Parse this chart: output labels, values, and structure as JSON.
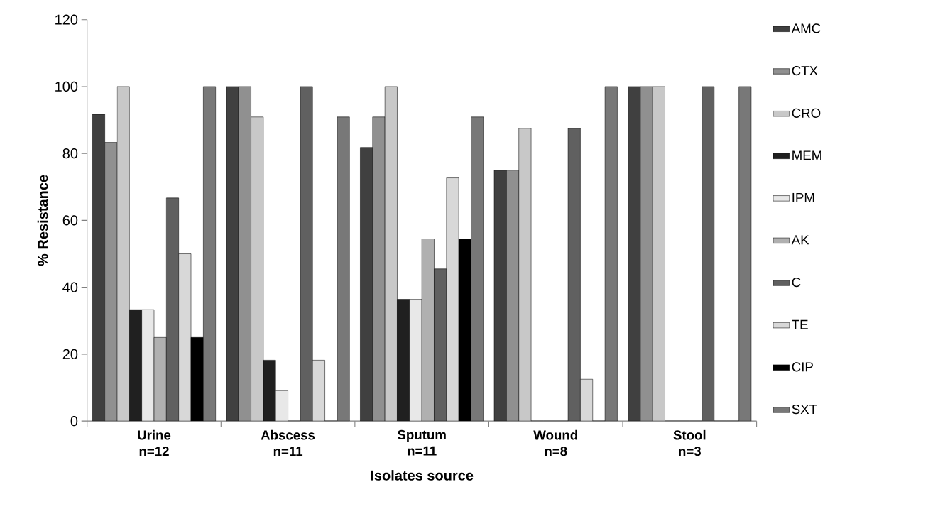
{
  "chart_data": {
    "type": "bar",
    "xlabel": "Isolates source",
    "ylabel": "% Resistance",
    "categories": [
      "Urine n=12",
      "Abscess n=11",
      "Sputum n=11",
      "Wound n=8",
      "Stool n=3"
    ],
    "series": [
      {
        "name": "AMC",
        "color": "#404040",
        "values": [
          91.7,
          100,
          81.8,
          75,
          100
        ]
      },
      {
        "name": "CTX",
        "color": "#909090",
        "values": [
          83.3,
          100,
          90.9,
          75,
          100
        ]
      },
      {
        "name": "CRO",
        "color": "#c8c8c8",
        "values": [
          100,
          90.9,
          100,
          87.5,
          100
        ]
      },
      {
        "name": "MEM",
        "color": "#202020",
        "values": [
          33.3,
          18.2,
          36.4,
          0,
          0
        ]
      },
      {
        "name": "IPM",
        "color": "#e8e8e8",
        "values": [
          33.3,
          9.1,
          36.4,
          0,
          0
        ]
      },
      {
        "name": "AK",
        "color": "#b0b0b0",
        "values": [
          25,
          0,
          54.5,
          0,
          0
        ]
      },
      {
        "name": "C",
        "color": "#606060",
        "values": [
          66.7,
          100,
          45.5,
          87.5,
          100
        ]
      },
      {
        "name": "TE",
        "color": "#d8d8d8",
        "values": [
          50,
          18.2,
          72.7,
          12.5,
          0
        ]
      },
      {
        "name": "CIP",
        "color": "#000000",
        "values": [
          25,
          0,
          54.5,
          0,
          0
        ]
      },
      {
        "name": "SXT",
        "color": "#787878",
        "values": [
          100,
          90.9,
          90.9,
          100,
          100
        ]
      }
    ],
    "ylim": [
      0,
      120
    ],
    "yticks": [
      0,
      20,
      40,
      60,
      80,
      100,
      120
    ],
    "legend": "right"
  }
}
